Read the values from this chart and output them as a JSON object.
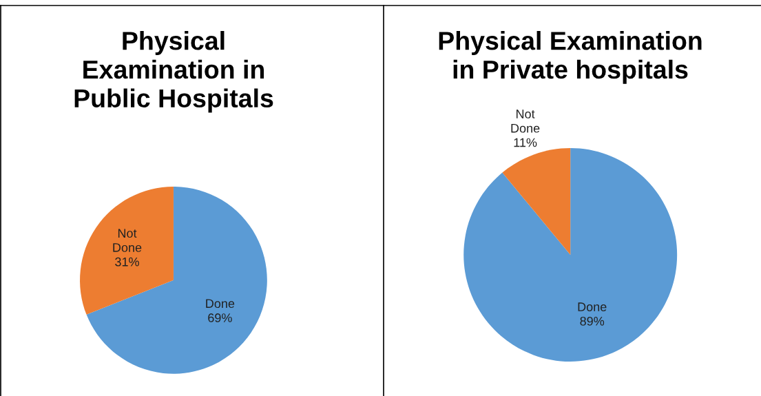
{
  "chart_data": [
    {
      "type": "pie",
      "title": "Physical\nExamination in\nPublic Hospitals",
      "categories": [
        "Done",
        "Not Done"
      ],
      "values": [
        69,
        31
      ],
      "value_labels": [
        "69%",
        "31%"
      ],
      "colors": [
        "#5b9bd5",
        "#ed7d31"
      ],
      "legend": false
    },
    {
      "type": "pie",
      "title": "Physical Examination\nin Private hospitals",
      "categories": [
        "Done",
        "Not Done"
      ],
      "values": [
        89,
        11
      ],
      "value_labels": [
        "89%",
        "11%"
      ],
      "colors": [
        "#5b9bd5",
        "#ed7d31"
      ],
      "legend": false
    }
  ]
}
